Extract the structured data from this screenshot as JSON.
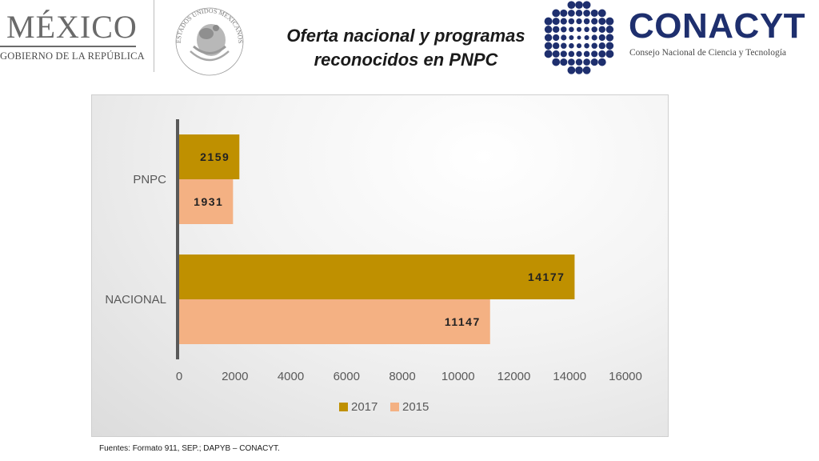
{
  "header": {
    "mexico_word": "MÉXICO",
    "mexico_sub": "GOBIERNO DE LA REPÚBLICA",
    "seal_text": "ESTADOS UNIDOS MEXICANOS",
    "title_line1": "Oferta nacional y programas",
    "title_line2": "reconocidos en PNPC",
    "conacyt_word": "CONACYT",
    "conacyt_sub": "Consejo Nacional de Ciencia y Tecnología",
    "conacyt_color": "#1e2f6e"
  },
  "chart_data": {
    "type": "bar",
    "orientation": "horizontal",
    "categories": [
      "PNPC",
      "NACIONAL"
    ],
    "series": [
      {
        "name": "2017",
        "values": [
          2159,
          14177
        ],
        "color": "#bf9000"
      },
      {
        "name": "2015",
        "values": [
          1931,
          11147
        ],
        "color": "#f4b183"
      }
    ],
    "xticks": [
      "0",
      "2000",
      "4000",
      "6000",
      "8000",
      "10000",
      "12000",
      "14000",
      "16000"
    ],
    "xlim": [
      0,
      16000
    ],
    "grid": false,
    "legend": "bottom"
  },
  "footer": {
    "source": "Fuentes: Formato 911, SEP.; DAPYB – CONACYT."
  }
}
